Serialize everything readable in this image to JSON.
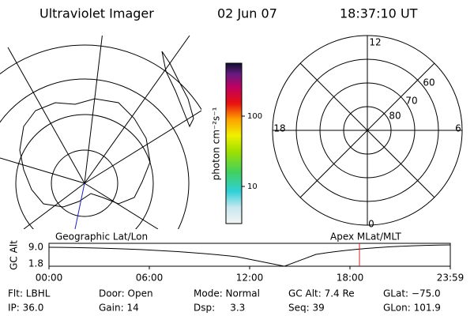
{
  "header": {
    "title": "Ultraviolet Imager",
    "date": "02 Jun 07",
    "time": "18:37:10 UT"
  },
  "colorbar": {
    "label": "photon cm⁻²s⁻¹",
    "ticks": [
      "100",
      "10"
    ]
  },
  "polar": {
    "hour_labels": [
      "12",
      "18",
      "6",
      "0"
    ],
    "lat_labels": [
      "80",
      "70",
      "60"
    ]
  },
  "altitude_panel": {
    "ylabel": "GC Alt",
    "yticks": [
      "9.0",
      "1.8"
    ],
    "left_label": "Geographic Lat/Lon",
    "right_label": "Apex MLat/MLT",
    "xticks": [
      "00:00",
      "06:00",
      "12:00",
      "18:00",
      "23:59"
    ]
  },
  "info": [
    [
      "Flt: LBHL",
      "Door: Open",
      "Mode: Normal",
      "GC Alt: 7.4 Re",
      "GLat: −75.0"
    ],
    [
      "IP: 36.0",
      "Gain: 14",
      "Dsp:     3.3",
      "Seq: 39",
      "GLon: 101.9"
    ]
  ]
}
